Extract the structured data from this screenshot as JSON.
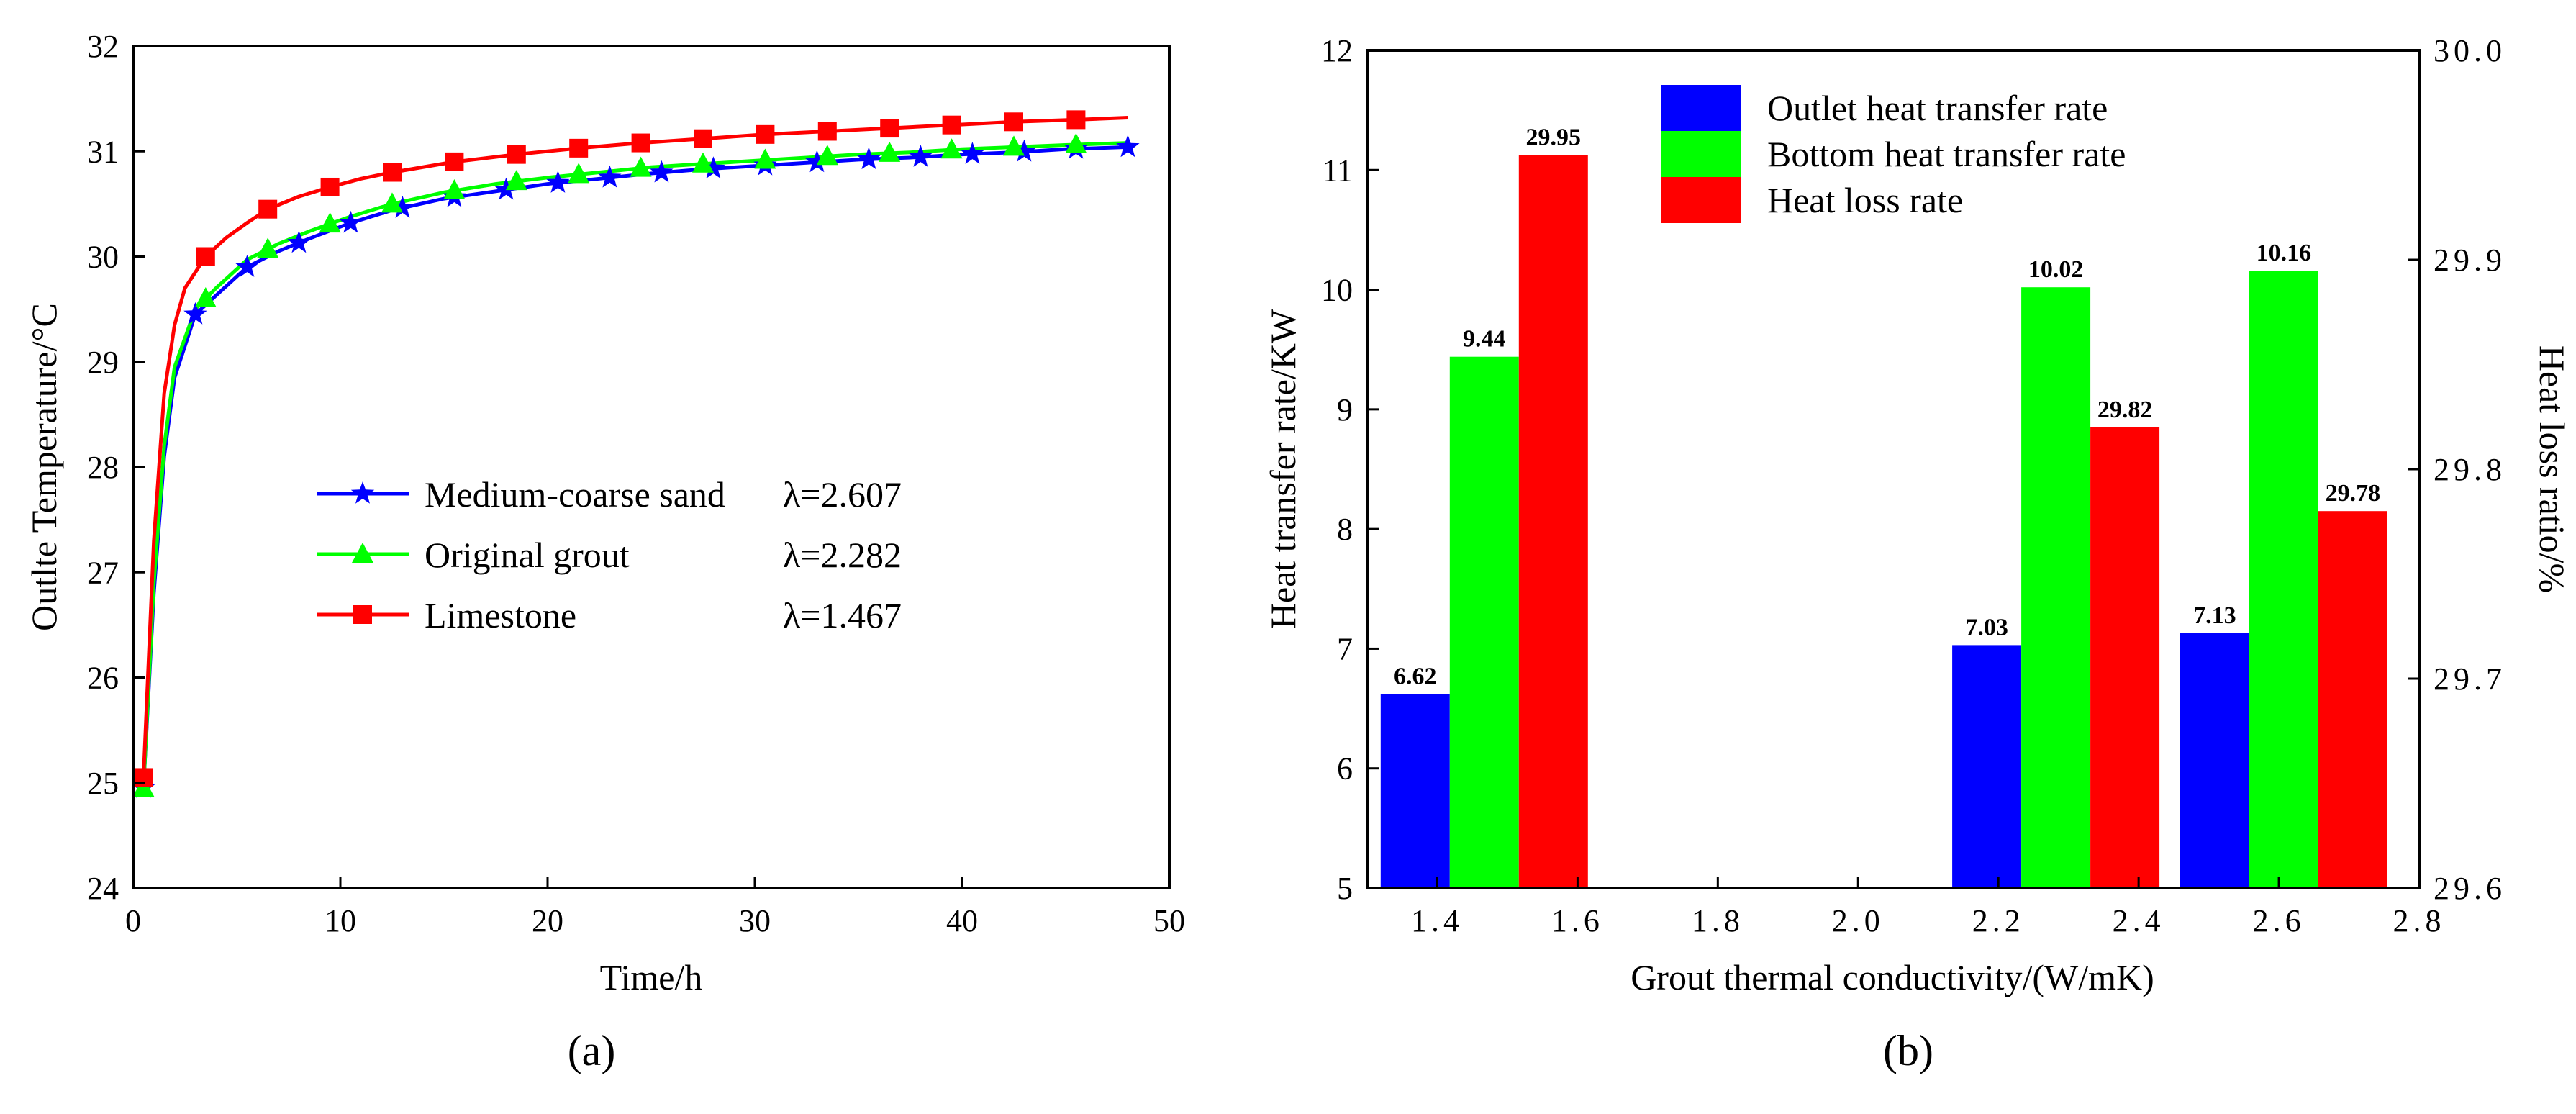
{
  "colors": {
    "blue": "#0000FF",
    "green": "#00FF00",
    "red": "#FF0000",
    "axis": "#000000"
  },
  "chart_data": [
    {
      "type": "line",
      "panel": "a",
      "panel_label": "(a)",
      "xlabel": "Time/h",
      "ylabel": "Outlte Temperature/°C",
      "xlim": [
        0,
        50
      ],
      "ylim": [
        24,
        32
      ],
      "xticks": [
        0,
        10,
        20,
        30,
        40,
        50
      ],
      "yticks": [
        24,
        25,
        26,
        27,
        28,
        29,
        30,
        31,
        32
      ],
      "legend_position": "center-right",
      "series": [
        {
          "name": "Medium-coarse sand",
          "lambda": "λ=2.607",
          "color": "#0000FF",
          "marker": "star",
          "x": [
            0.5,
            1.0,
            1.5,
            2.0,
            3.0,
            4.0,
            5.5,
            7.0,
            8.5,
            10.5,
            12.5,
            15.0,
            17.5,
            20.0,
            22.5,
            25.0,
            27.5,
            30.0,
            32.5,
            35.0,
            37.5,
            40.0,
            42.5,
            45.0,
            48.0
          ],
          "y": [
            24.95,
            26.8,
            28.1,
            28.85,
            29.45,
            29.63,
            29.9,
            30.05,
            30.17,
            30.32,
            30.44,
            30.55,
            30.62,
            30.69,
            30.74,
            30.79,
            30.83,
            30.86,
            30.89,
            30.92,
            30.94,
            30.97,
            30.99,
            31.02,
            31.04
          ],
          "marker_x": [
            0.5,
            3.0,
            5.5,
            8.0,
            10.5,
            13.0,
            15.5,
            18.0,
            20.5,
            23.0,
            25.5,
            28.0,
            30.5,
            33.0,
            35.5,
            38.0,
            40.5,
            43.0,
            45.5,
            48.0
          ]
        },
        {
          "name": "Original grout",
          "lambda": "λ=2.282",
          "color": "#00FF00",
          "marker": "triangle",
          "x": [
            0.5,
            1.0,
            1.5,
            2.0,
            3.0,
            4.0,
            5.5,
            7.0,
            8.5,
            10.5,
            12.5,
            15.0,
            17.5,
            20.0,
            22.5,
            25.0,
            27.5,
            30.0,
            32.5,
            35.0,
            37.5,
            40.0,
            42.5,
            45.0,
            48.0
          ],
          "y": [
            24.95,
            26.9,
            28.2,
            28.95,
            29.5,
            29.7,
            29.97,
            30.12,
            30.24,
            30.38,
            30.5,
            30.61,
            30.69,
            30.75,
            30.8,
            30.85,
            30.88,
            30.91,
            30.94,
            30.97,
            30.99,
            31.02,
            31.04,
            31.06,
            31.08
          ],
          "marker_x": [
            0.5,
            3.5,
            6.5,
            9.5,
            12.5,
            15.5,
            18.5,
            21.5,
            24.5,
            27.5,
            30.5,
            33.5,
            36.5,
            39.5,
            42.5,
            45.5
          ]
        },
        {
          "name": "Limestone",
          "lambda": "λ=1.467",
          "color": "#FF0000",
          "marker": "square",
          "x": [
            0.5,
            1.0,
            1.5,
            2.0,
            2.5,
            3.5,
            4.5,
            5.5,
            6.5,
            8.0,
            9.5,
            11.0,
            12.5,
            15.5,
            18.5,
            21.5,
            24.5,
            27.5,
            30.5,
            33.5,
            36.5,
            39.5,
            42.5,
            45.5,
            48.0
          ],
          "y": [
            25.05,
            27.3,
            28.7,
            29.35,
            29.7,
            30.0,
            30.18,
            30.32,
            30.45,
            30.57,
            30.66,
            30.74,
            30.8,
            30.9,
            30.97,
            31.03,
            31.08,
            31.12,
            31.16,
            31.19,
            31.22,
            31.25,
            31.28,
            31.3,
            31.32
          ],
          "marker_x": [
            0.5,
            3.5,
            6.5,
            9.5,
            12.5,
            15.5,
            18.5,
            21.5,
            24.5,
            27.5,
            30.5,
            33.5,
            36.5,
            39.5,
            42.5,
            45.5
          ]
        }
      ]
    },
    {
      "type": "bar",
      "panel": "b",
      "panel_label": "(b)",
      "xlabel": "Grout thermal conductivity/(W/mK)",
      "ylabel": "Heat transfer rate/KW",
      "y2label": "Heat loss ratio/%",
      "xlim": [
        1.3,
        2.8
      ],
      "ylim": [
        5,
        12
      ],
      "y2lim": [
        29.6,
        30.0
      ],
      "xticks": [
        "1.4",
        "1.6",
        "1.8",
        "2.0",
        "2.2",
        "2.4",
        "2.6",
        "2.8"
      ],
      "yticks": [
        "5",
        "6",
        "7",
        "8",
        "9",
        "10",
        "11",
        "12"
      ],
      "y2ticks": [
        "29.6",
        "29.7",
        "29.8",
        "29.9",
        "30.0"
      ],
      "legend_position": "top-center",
      "groups": [
        1.467,
        2.282,
        2.607
      ],
      "series": [
        {
          "name": "Outlet heat transfer rate",
          "color": "#0000FF",
          "axis": "left",
          "values": [
            6.62,
            7.03,
            7.13
          ],
          "labels": [
            "6.62",
            "7.03",
            "7.13"
          ]
        },
        {
          "name": "Bottom heat transfer rate",
          "color": "#00FF00",
          "axis": "left",
          "values": [
            9.44,
            10.02,
            10.16
          ],
          "labels": [
            "9.44",
            "10.02",
            "10.16"
          ]
        },
        {
          "name": "Heat loss rate",
          "color": "#FF0000",
          "axis": "right",
          "values": [
            29.95,
            29.82,
            29.78
          ],
          "labels": [
            "29.95",
            "29.82",
            "29.78"
          ]
        }
      ]
    }
  ]
}
